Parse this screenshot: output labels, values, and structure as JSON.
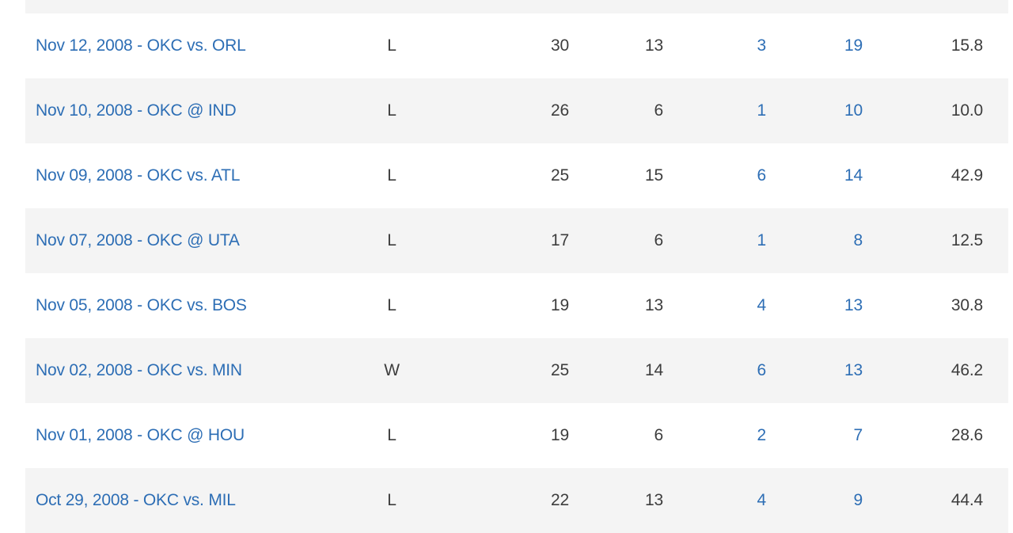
{
  "colors": {
    "link_blue": "#2d6eb5",
    "text_dark": "#3d3d3d",
    "row_stripe": "#f4f4f4",
    "row_white": "#ffffff"
  },
  "table": {
    "rows": [
      {
        "game": "Nov 12, 2008 - OKC vs. ORL",
        "result": "L",
        "stats": [
          "30",
          "13",
          "3",
          "19",
          "15.8"
        ]
      },
      {
        "game": "Nov 10, 2008 - OKC @ IND",
        "result": "L",
        "stats": [
          "26",
          "6",
          "1",
          "10",
          "10.0"
        ]
      },
      {
        "game": "Nov 09, 2008 - OKC vs. ATL",
        "result": "L",
        "stats": [
          "25",
          "15",
          "6",
          "14",
          "42.9"
        ]
      },
      {
        "game": "Nov 07, 2008 - OKC @ UTA",
        "result": "L",
        "stats": [
          "17",
          "6",
          "1",
          "8",
          "12.5"
        ]
      },
      {
        "game": "Nov 05, 2008 - OKC vs. BOS",
        "result": "L",
        "stats": [
          "19",
          "13",
          "4",
          "13",
          "30.8"
        ]
      },
      {
        "game": "Nov 02, 2008 - OKC vs. MIN",
        "result": "W",
        "stats": [
          "25",
          "14",
          "6",
          "13",
          "46.2"
        ]
      },
      {
        "game": "Nov 01, 2008 - OKC @ HOU",
        "result": "L",
        "stats": [
          "19",
          "6",
          "2",
          "7",
          "28.6"
        ]
      },
      {
        "game": "Oct 29, 2008 - OKC vs. MIL",
        "result": "L",
        "stats": [
          "22",
          "13",
          "4",
          "9",
          "44.4"
        ]
      }
    ]
  }
}
